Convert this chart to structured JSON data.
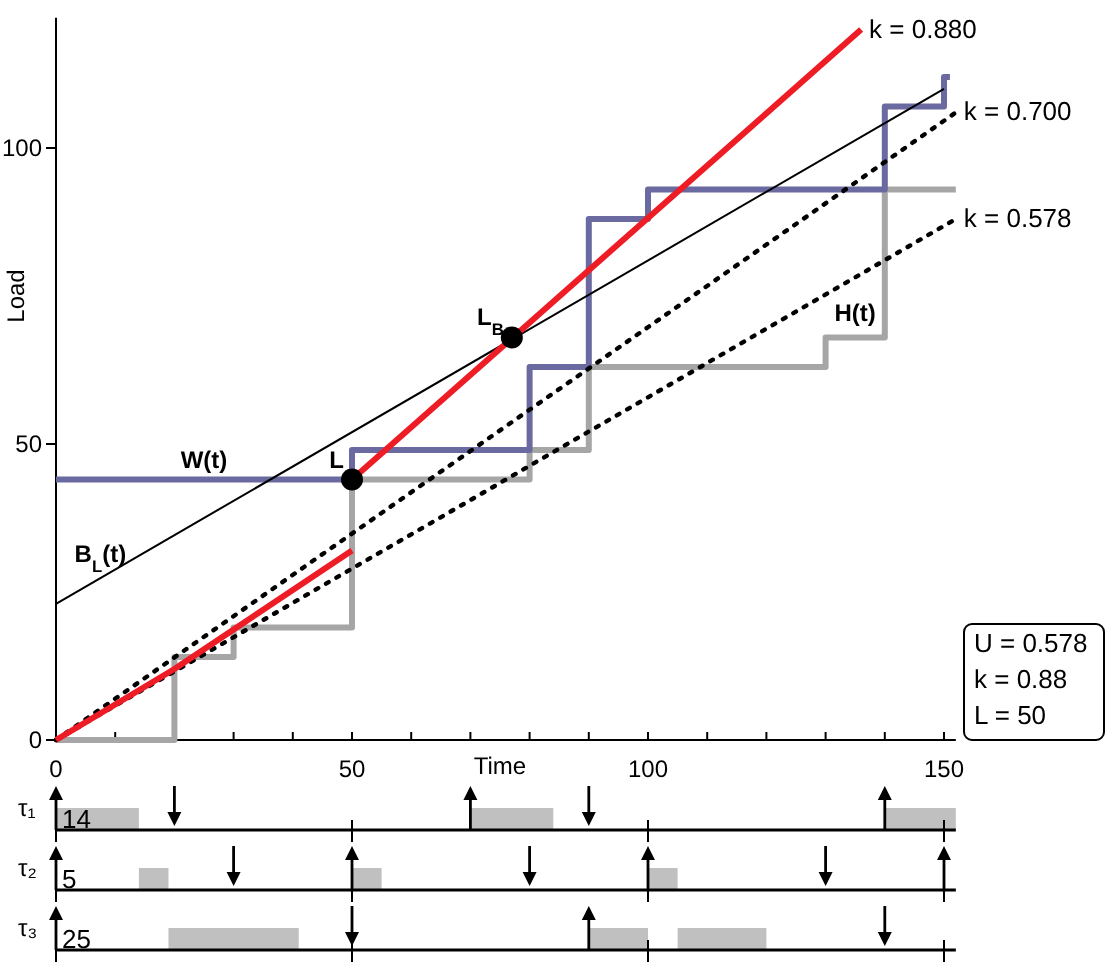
{
  "chart_data": [
    {
      "type": "line",
      "xlabel": "Time",
      "ylabel": "Load",
      "xlim": [
        0,
        152
      ],
      "ylim": [
        0,
        122
      ],
      "xticks": [
        0,
        {
          "value": 10,
          "label": null
        },
        {
          "value": 20,
          "label": null
        },
        {
          "value": 30,
          "label": null
        },
        {
          "value": 40,
          "label": null
        },
        50,
        {
          "value": 60,
          "label": null
        },
        {
          "value": 70,
          "label": null
        },
        {
          "value": 80,
          "label": null
        },
        {
          "value": 90,
          "label": null
        },
        100,
        {
          "value": 110,
          "label": null
        },
        {
          "value": 120,
          "label": null
        },
        {
          "value": 130,
          "label": null
        },
        {
          "value": 140,
          "label": null
        },
        150
      ],
      "yticks": [
        0,
        50,
        100
      ],
      "grid": false,
      "series": [
        {
          "name": "H(t)",
          "type": "step",
          "color": "#a6a6a6",
          "x": [
            0,
            20,
            30,
            50,
            80,
            90,
            130,
            140,
            152
          ],
          "values": [
            0,
            14,
            19,
            44,
            49,
            63,
            68,
            93,
            93
          ]
        },
        {
          "name": "W(t)",
          "type": "step",
          "color": "#6a6aa0",
          "x": [
            0,
            50,
            80,
            90,
            100,
            140,
            150,
            151
          ],
          "values": [
            44,
            49,
            63,
            88,
            93,
            107,
            112,
            112
          ]
        },
        {
          "name": "B$_{L}$(t)",
          "color": "#000000",
          "x": [
            0,
            150
          ],
          "values": [
            23,
            110
          ]
        },
        {
          "name": "k = 0.700",
          "color": "#000000",
          "line_style": "dotted",
          "x": [
            0,
            152
          ],
          "values": [
            0,
            106
          ]
        },
        {
          "name": "k = 0.578",
          "color": "#000000",
          "line_style": "dotted",
          "x": [
            0,
            152
          ],
          "values": [
            0,
            88
          ]
        },
        {
          "color": "#ee1c24",
          "x": [
            0,
            10,
            20,
            35,
            50
          ],
          "values": [
            0,
            6,
            12,
            22,
            32
          ]
        },
        {
          "name": "k = 0.880",
          "color": "#ee1c24",
          "x": [
            50,
            136
          ],
          "values": [
            44,
            120
          ]
        },
        {
          "type": "scatter",
          "color": "#000000",
          "marker": "circle",
          "x": [
            50,
            77
          ],
          "values": [
            44,
            68
          ]
        }
      ],
      "annotations": [
        {
          "text": "L",
          "x": 50,
          "y": 44
        },
        {
          "text": "L$_{B}$",
          "x": 77,
          "y": 68
        },
        "U = 0.578",
        "k = 0.88",
        "L = 50"
      ]
    },
    {
      "type": "bar",
      "orientation": "horizontal",
      "categories": [
        "τ₁",
        "τ₂",
        "τ₃"
      ],
      "xlim": [
        0,
        152
      ],
      "xticks": [
        0,
        50,
        100,
        150
      ],
      "tick_labels": "y",
      "series": [
        {
          "color": "#c0c0c0",
          "values": [
            14,
            5,
            22
          ],
          "base": [
            0,
            14,
            19
          ]
        },
        {
          "color": "#c0c0c0",
          "values": [
            14,
            5,
            10
          ],
          "base": [
            70,
            50,
            90
          ]
        },
        {
          "color": "#c0c0c0",
          "values": [
            12,
            5,
            15
          ],
          "base": [
            140,
            100,
            105
          ]
        },
        {
          "type": "scatter",
          "marker": "triangle",
          "color": "#000000",
          "values": [
            0,
            0,
            0
          ]
        },
        {
          "type": "scatter",
          "marker": "triangle",
          "color": "#000000",
          "values": [
            70,
            50,
            90
          ]
        },
        {
          "type": "scatter",
          "marker": "triangle",
          "color": "#000000",
          "values": [
            140,
            100,
            null
          ]
        },
        {
          "type": "scatter",
          "marker": "triangle",
          "color": "#000000",
          "values": [
            null,
            150,
            null
          ]
        },
        {
          "type": "scatter",
          "marker": "triangle-down",
          "color": "#000000",
          "values": [
            20,
            30,
            50
          ]
        },
        {
          "type": "scatter",
          "marker": "triangle-down",
          "color": "#000000",
          "values": [
            90,
            80,
            140
          ]
        },
        {
          "type": "scatter",
          "marker": "triangle-down",
          "color": "#000000",
          "values": [
            null,
            130,
            null
          ]
        }
      ],
      "annotations": [
        "14",
        "5",
        "25"
      ]
    }
  ]
}
